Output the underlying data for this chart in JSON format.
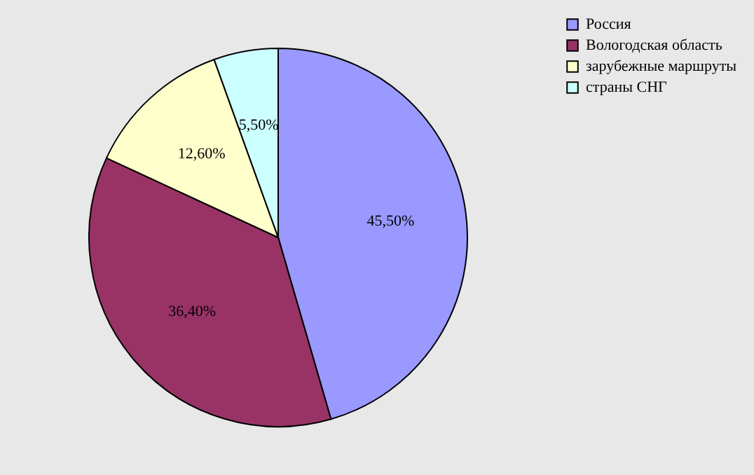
{
  "chart_data": {
    "type": "pie",
    "categories": [
      "Россия",
      "Вологодская область",
      "зарубежные маршруты",
      "страны СНГ"
    ],
    "values": [
      45.5,
      36.4,
      12.6,
      5.5
    ],
    "colors": [
      "#9999ff",
      "#993366",
      "#ffffcc",
      "#ccffff"
    ],
    "value_labels": [
      "45,50%",
      "36,40%",
      "12,60%",
      "5,50%"
    ],
    "legend": "right"
  }
}
